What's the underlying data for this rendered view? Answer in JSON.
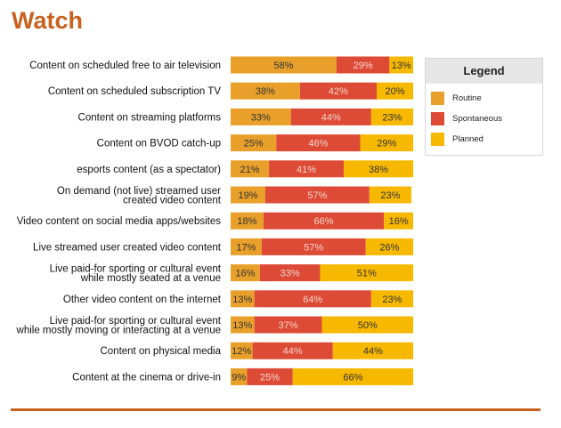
{
  "title": "Watch",
  "legend": {
    "title": "Legend",
    "items": [
      {
        "label": "Routine",
        "color": "#e8a02a"
      },
      {
        "label": "Spontaneous",
        "color": "#dd4b37"
      },
      {
        "label": "Planned",
        "color": "#f7b800"
      }
    ]
  },
  "chart_data": {
    "type": "bar",
    "orientation": "horizontal",
    "stacked": true,
    "normalized": true,
    "categories": [
      [
        "Content on scheduled free to air television"
      ],
      [
        "Content on scheduled subscription TV"
      ],
      [
        "Content on streaming platforms"
      ],
      [
        "Content on BVOD catch-up"
      ],
      [
        "esports content (as a spectator)"
      ],
      [
        "On demand (not live) streamed user",
        "created video content"
      ],
      [
        "Video content on social media apps/websites"
      ],
      [
        "Live streamed user created video content"
      ],
      [
        "Live paid-for sporting or cultural event",
        "while mostly seated at a venue"
      ],
      [
        "Other video content on the internet"
      ],
      [
        "Live paid-for sporting or cultural event",
        "while mostly moving or interacting at a venue"
      ],
      [
        "Content on physical media"
      ],
      [
        "Content at the cinema or drive-in"
      ]
    ],
    "series": [
      {
        "name": "Routine",
        "color": "#e8a02a",
        "values": [
          58,
          38,
          33,
          25,
          21,
          19,
          18,
          17,
          16,
          13,
          13,
          12,
          9
        ]
      },
      {
        "name": "Spontaneous",
        "color": "#dd4b37",
        "values": [
          29,
          42,
          44,
          46,
          41,
          57,
          66,
          57,
          33,
          64,
          37,
          44,
          25
        ]
      },
      {
        "name": "Planned",
        "color": "#f7b800",
        "values": [
          13,
          20,
          23,
          29,
          38,
          23,
          16,
          26,
          51,
          23,
          50,
          44,
          66
        ]
      }
    ],
    "value_suffix": "%",
    "xlim": [
      0,
      100
    ],
    "grid": false,
    "legend_position": "right"
  }
}
